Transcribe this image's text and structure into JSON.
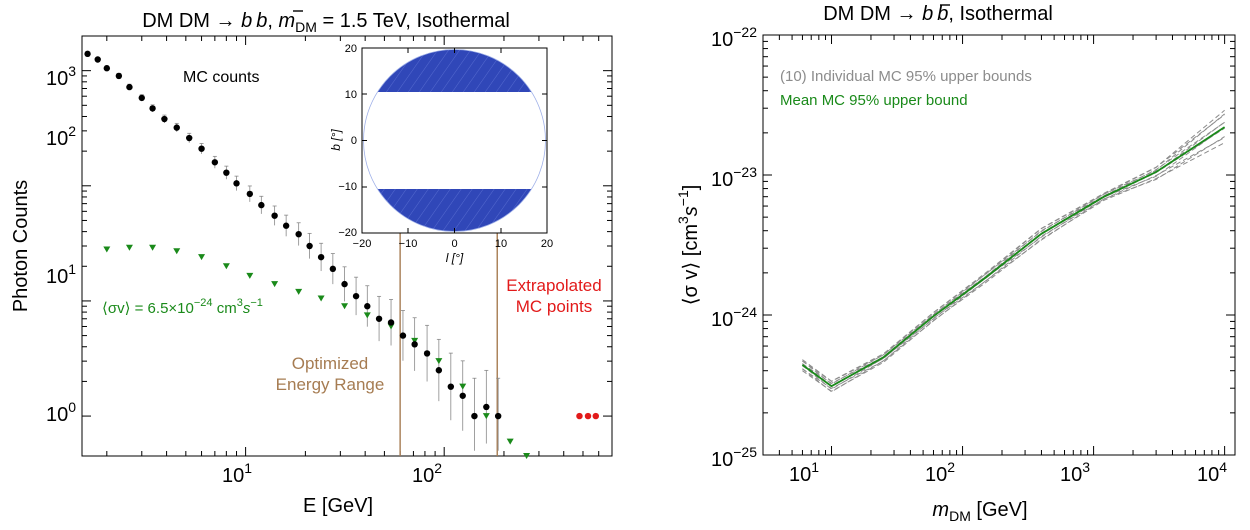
{
  "colors": {
    "mc": "#000000",
    "signal": "#1a8a1a",
    "energy_range": "#a67c52",
    "extrapolated": "#e21a1a",
    "individual": "#8c8c8c",
    "mean": "#1a8a1a",
    "mask": "#3047b8"
  },
  "left": {
    "title_prefix": "DM DM → ",
    "title_b": "b",
    "title_bbar": "b",
    "title_mid": ", ",
    "title_m": "m",
    "title_msub": "DM",
    "title_value": " = 1.5 TeV, Isothermal",
    "ylabel": "Photon Counts",
    "xlabel": "E [GeV]",
    "mc_label": "MC counts",
    "sigma_label_a": "⟨σv⟩ = 6.5×10",
    "sigma_label_exp": "−24",
    "sigma_label_b": " cm",
    "sigma_label_3": "3",
    "sigma_label_s": "s",
    "sigma_label_sexp": "−1",
    "extrap_line1": "Extrapolated",
    "extrap_line2": "MC points",
    "opt_line1": "Optimized",
    "opt_line2": "Energy Range",
    "x_ticks": [
      "10",
      "10"
    ],
    "x_tick_exps": [
      "1",
      "2"
    ],
    "y_ticks": [
      "10",
      "10",
      "10",
      "10"
    ],
    "y_tick_exps": [
      "0",
      "1",
      "2",
      "3"
    ]
  },
  "inset": {
    "xlabel": "l [°]",
    "ylabel": "b [°]",
    "x_ticks": [
      "−20",
      "−10",
      "0",
      "10",
      "20"
    ],
    "y_ticks": [
      "20",
      "10",
      "0",
      "−10",
      "−20"
    ]
  },
  "right": {
    "title_prefix": "DM DM → ",
    "title_b": "b",
    "title_bbar": "b",
    "title_suffix": ", Isothermal",
    "ylabel_a": "⟨σ v⟩ [cm",
    "ylabel_3": "3",
    "ylabel_s": "s",
    "ylabel_exp": "−1",
    "ylabel_end": "]",
    "xlabel_m": "m",
    "xlabel_sub": "DM",
    "xlabel_rest": " [GeV]",
    "legend_individual": "(10) Individual MC 95% upper bounds",
    "legend_mean": "Mean MC 95% upper bound",
    "x_ticks": [
      "10",
      "10",
      "10",
      "10"
    ],
    "x_tick_exps": [
      "1",
      "2",
      "3",
      "4"
    ],
    "y_ticks": [
      "10",
      "10",
      "10",
      "10"
    ],
    "y_tick_exps": [
      "−22",
      "−23",
      "−24",
      "−25"
    ]
  },
  "chart_data": [
    {
      "type": "scatter",
      "title": "DM DM → b b̄, m_DM = 1.5 TeV, Isothermal",
      "xlabel": "E [GeV]",
      "ylabel": "Photon Counts",
      "xscale": "log",
      "yscale": "log",
      "xlim": [
        1.5,
        700
      ],
      "ylim": [
        0.45,
        2000
      ],
      "energy_range": [
        60,
        185
      ],
      "series": [
        {
          "name": "MC counts",
          "x": [
            1.6,
            1.8,
            2.0,
            2.3,
            2.6,
            3.0,
            3.4,
            3.9,
            4.5,
            5.2,
            6.0,
            7.0,
            8.0,
            9.0,
            10.5,
            12.0,
            14.0,
            16.0,
            18.5,
            21.0,
            24.0,
            27.5,
            31.5,
            36.0,
            41.0,
            47.0,
            54.0,
            62.0,
            71.0,
            82.0,
            94.0,
            108.0,
            124.0,
            142.0,
            163.0,
            187.0
          ],
          "y": [
            1400,
            1250,
            1050,
            900,
            720,
            580,
            470,
            380,
            320,
            260,
            210,
            160,
            130,
            105,
            85,
            68,
            55,
            45,
            38,
            30,
            24,
            19,
            14,
            11,
            9,
            7,
            6.5,
            5,
            4.2,
            3.5,
            2.5,
            1.8,
            1.5,
            1.0,
            1.2,
            1.0
          ]
        },
        {
          "x": [
            2.0,
            2.6,
            3.4,
            4.5,
            6.0,
            8.0,
            10.5,
            14.0,
            18.5,
            24.0,
            31.5,
            41.0,
            54.0,
            71.0,
            94.0,
            124.0,
            163.0,
            215.0,
            260.0
          ],
          "y": [
            28,
            29,
            29,
            27,
            24,
            20,
            16.5,
            14,
            12,
            10.5,
            9,
            7.5,
            6.0,
            4.5,
            3.0,
            1.8,
            1.0,
            0.6,
            0.45
          ]
        },
        {
          "name": "Extrapolated MC points",
          "x": [
            480,
            530,
            580
          ],
          "y": [
            1.0,
            1.0,
            1.0
          ]
        }
      ]
    },
    {
      "type": "line",
      "title": "DM DM → b b̄, Isothermal",
      "xlabel": "m_DM [GeV]",
      "ylabel": "⟨σ v⟩ [cm^3 s^-1]",
      "xscale": "log",
      "yscale": "log",
      "xlim": [
        3,
        12000
      ],
      "ylim": [
        1e-25,
        1e-22
      ],
      "series": [
        {
          "name": "(10) Individual MC 95% upper bounds",
          "x": [
            6,
            10,
            25,
            60,
            150,
            400,
            1200,
            3000,
            10000
          ],
          "y_low": [
            4e-25,
            2.8e-25,
            4.6e-25,
            9e-25,
            1.7e-24,
            3.4e-24,
            6.6e-24,
            9.2e-24,
            1.7e-23
          ],
          "y_high": [
            4.8e-25,
            3.4e-25,
            5.3e-25,
            1.05e-24,
            2e-24,
            4.2e-24,
            7.4e-24,
            1.15e-23,
            2.9e-23
          ]
        },
        {
          "name": "Mean MC 95% upper bound",
          "x": [
            6,
            10,
            25,
            60,
            150,
            400,
            1200,
            3000,
            10000
          ],
          "y": [
            4.4e-25,
            3.1e-25,
            5e-25,
            9.8e-25,
            1.85e-24,
            3.8e-24,
            7e-24,
            1.05e-23,
            2.2e-23
          ]
        }
      ]
    }
  ]
}
